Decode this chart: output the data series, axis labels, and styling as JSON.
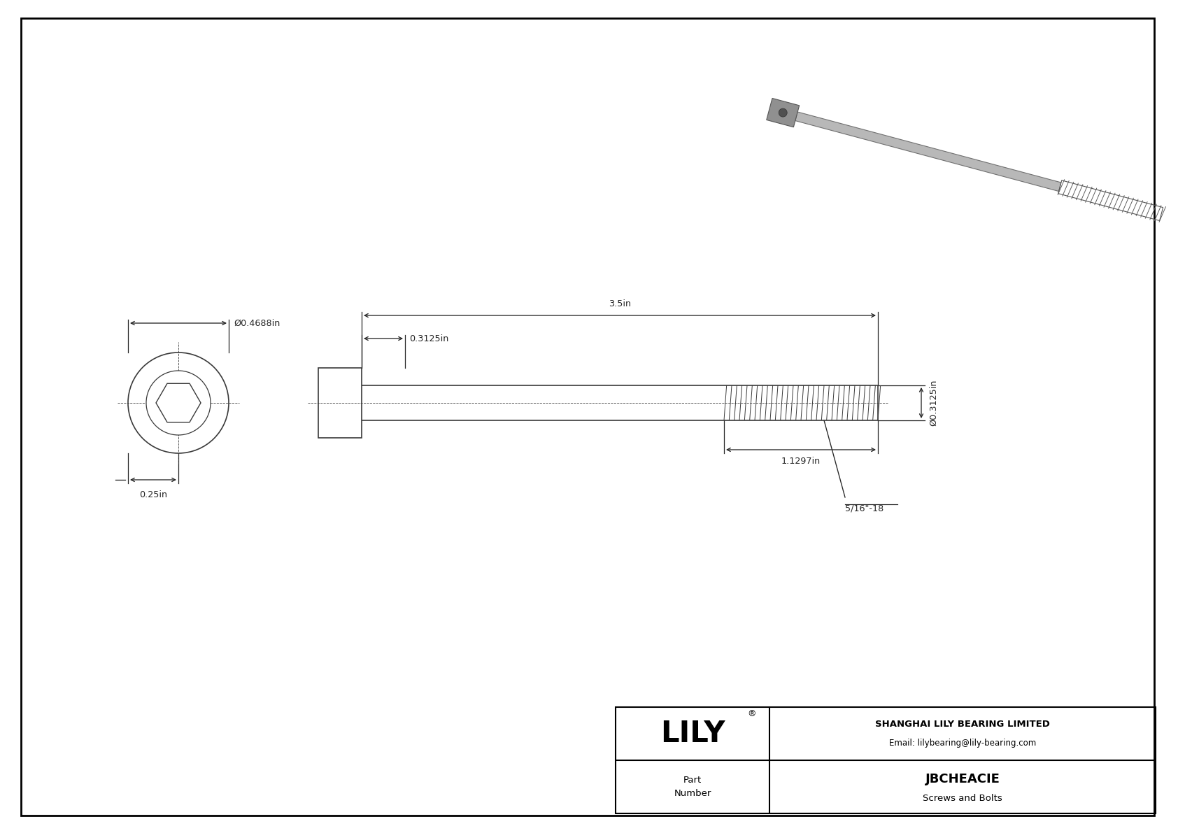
{
  "bg_color": "#ffffff",
  "line_color": "#3a3a3a",
  "dim_color": "#252525",
  "company_name": "SHANGHAI LILY BEARING LIMITED",
  "company_email": "Email: lilybearing@lily-bearing.com",
  "part_number": "JBCHEACIE",
  "part_category": "Screws and Bolts",
  "dim_head_diam": "Ø0.4688in",
  "dim_head_ht": "0.25in",
  "dim_shank_diam_top": "0.3125in",
  "dim_total_len": "3.5in",
  "dim_thread_len": "1.1297in",
  "dim_thread_spec": "5/16\"-18",
  "dim_shank_diam_right": "Ø0.3125in"
}
